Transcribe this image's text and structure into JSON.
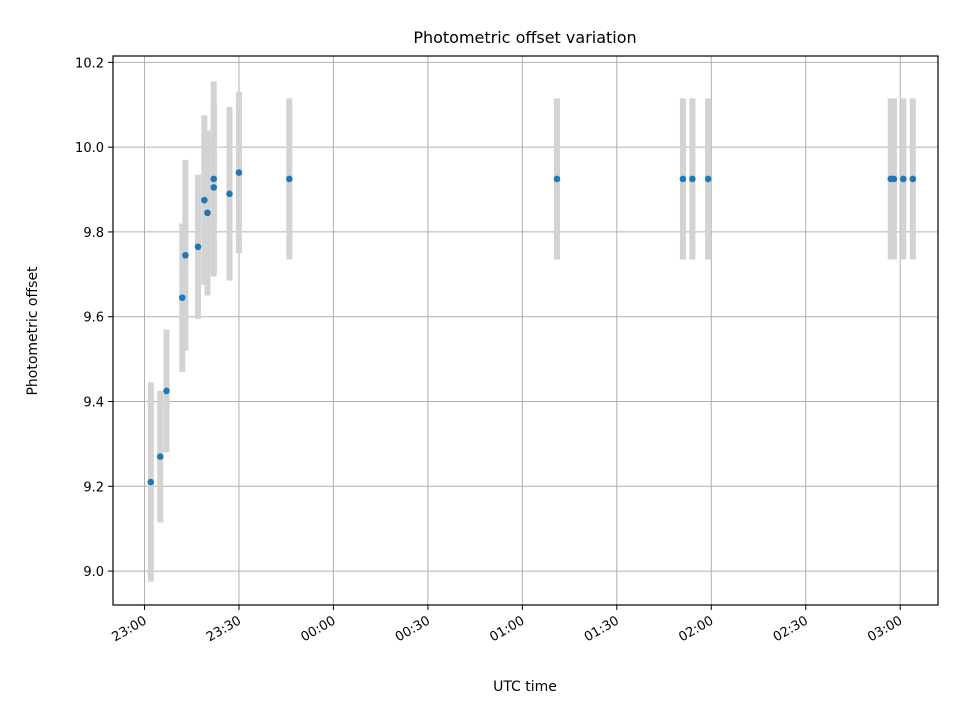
{
  "chart_data": {
    "type": "scatter",
    "title": "Photometric offset variation",
    "xlabel": "UTC time",
    "ylabel": "Photometric offset",
    "xlim": [
      "22:50",
      "03:12"
    ],
    "ylim": [
      8.92,
      10.215
    ],
    "x_ticks": [
      "23:00",
      "23:30",
      "00:00",
      "00:30",
      "01:00",
      "01:30",
      "02:00",
      "02:30",
      "03:00"
    ],
    "y_ticks": [
      9.0,
      9.2,
      9.4,
      9.6,
      9.8,
      10.0,
      10.2
    ],
    "y_tick_labels": [
      "9.0",
      "9.2",
      "9.4",
      "9.6",
      "9.8",
      "10.0",
      "10.2"
    ],
    "grid": true,
    "point_color": "#1f77b4",
    "errorbar_color": "#d3d3d3",
    "points": [
      {
        "t": "23:02",
        "y": 9.21,
        "err": 0.235
      },
      {
        "t": "23:05",
        "y": 9.27,
        "err": 0.155
      },
      {
        "t": "23:07",
        "y": 9.425,
        "err": 0.145
      },
      {
        "t": "23:12",
        "y": 9.645,
        "err": 0.175
      },
      {
        "t": "23:13",
        "y": 9.745,
        "err": 0.225
      },
      {
        "t": "23:17",
        "y": 9.765,
        "err": 0.17
      },
      {
        "t": "23:19",
        "y": 9.875,
        "err": 0.2
      },
      {
        "t": "23:20",
        "y": 9.845,
        "err": 0.195
      },
      {
        "t": "23:22",
        "y": 9.925,
        "err": 0.23
      },
      {
        "t": "23:22",
        "y": 9.905,
        "err": 0.2
      },
      {
        "t": "23:27",
        "y": 9.89,
        "err": 0.205
      },
      {
        "t": "23:30",
        "y": 9.94,
        "err": 0.19
      },
      {
        "t": "23:46",
        "y": 9.925,
        "err": 0.19
      },
      {
        "t": "01:11",
        "y": 9.925,
        "err": 0.19
      },
      {
        "t": "01:51",
        "y": 9.925,
        "err": 0.19
      },
      {
        "t": "01:54",
        "y": 9.925,
        "err": 0.19
      },
      {
        "t": "01:59",
        "y": 9.925,
        "err": 0.19
      },
      {
        "t": "02:57",
        "y": 9.925,
        "err": 0.19
      },
      {
        "t": "02:58",
        "y": 9.925,
        "err": 0.19
      },
      {
        "t": "03:01",
        "y": 9.925,
        "err": 0.19
      },
      {
        "t": "03:04",
        "y": 9.925,
        "err": 0.19
      }
    ]
  }
}
